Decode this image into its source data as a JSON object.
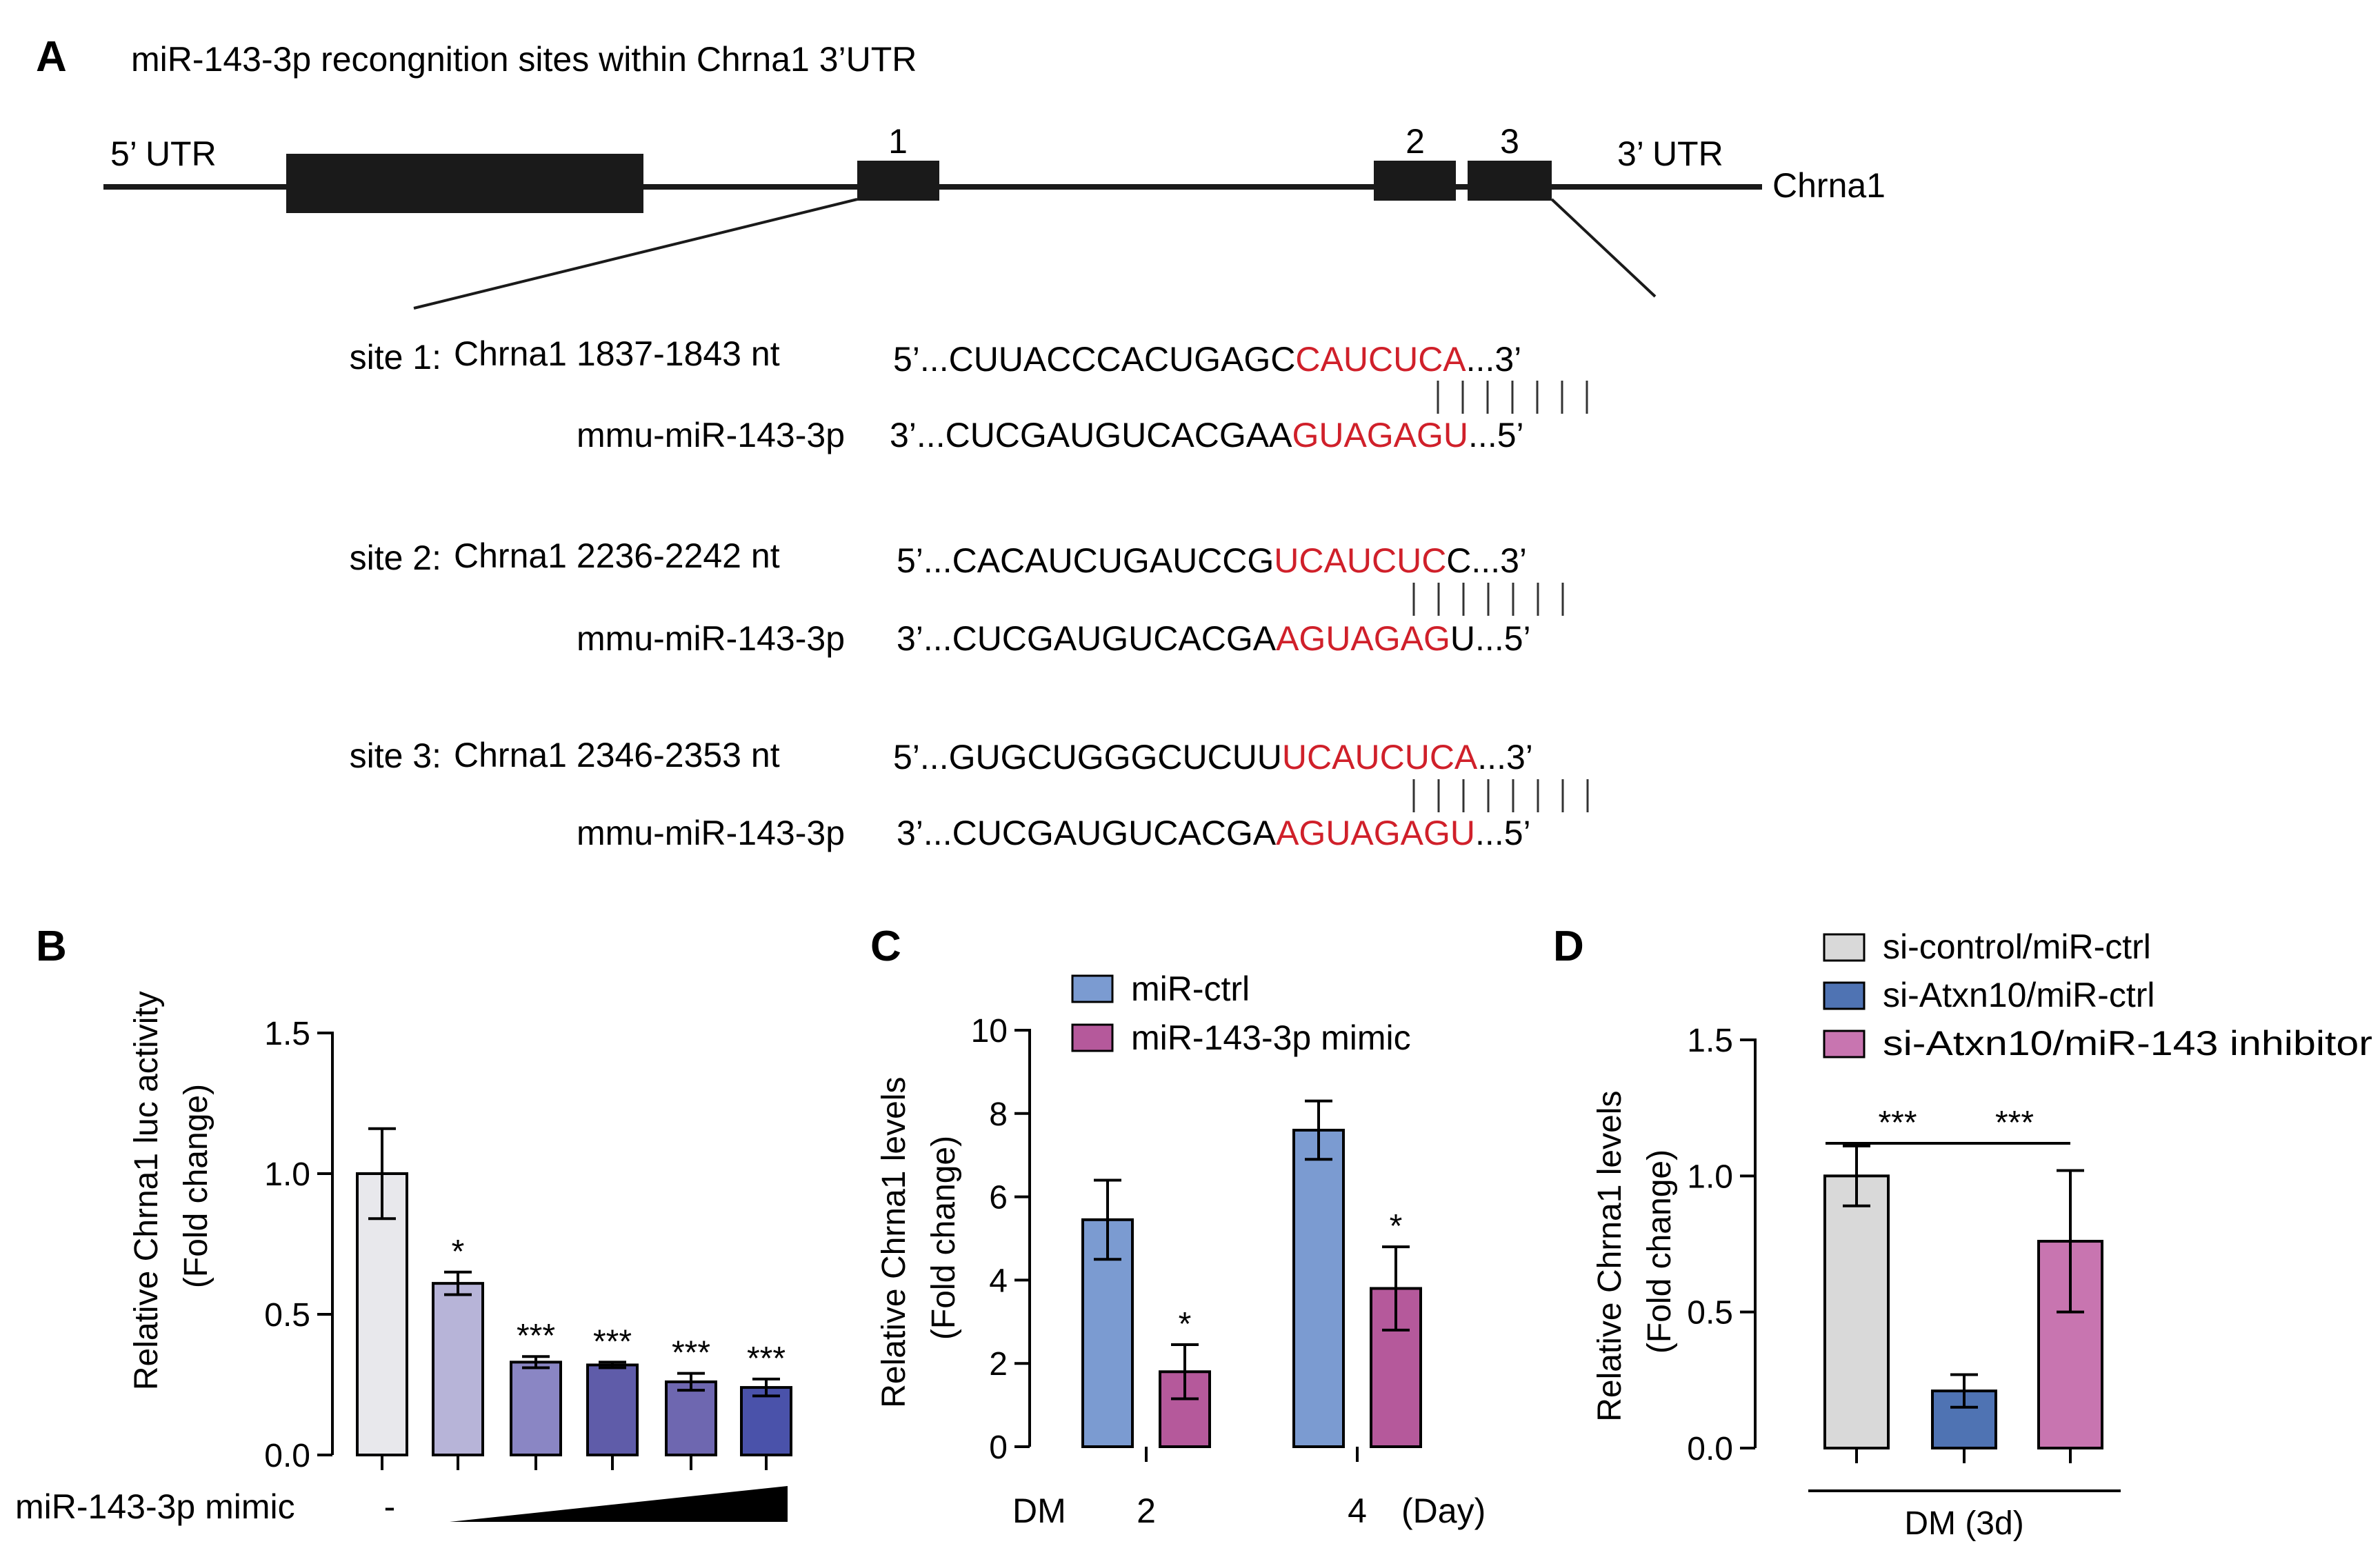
{
  "panel_a": {
    "letter": "A",
    "title": "miR-143-3p recongnition sites within Chrna1 3’UTR",
    "utr5_label": "5’ UTR",
    "utr3_label": "3’ UTR",
    "gene_label": "Chrna1",
    "site_numbers": [
      "1",
      "2",
      "3"
    ],
    "sites": [
      {
        "label": "site 1:",
        "target": "Chrna1 1837-1843 nt",
        "mirna": "mmu-miR-143-3p",
        "top_prefix": "5’...",
        "top_black": "CUUACCCACUGAGC",
        "top_red": "CAUCUCA",
        "top_tail": "",
        "top_suffix": "...3’",
        "bot_prefix": "3’...",
        "bot_black": "CUCGAUGUCACGAA",
        "bot_red": "GUAGAGU",
        "bot_tail": "",
        "bot_suffix": "...5’",
        "bars": 7
      },
      {
        "label": "site 2:",
        "target": "Chrna1 2236-2242 nt",
        "mirna": "mmu-miR-143-3p",
        "top_prefix": "5’...",
        "top_black": "CACAUCUGAUCCG",
        "top_red": "UCAUCUC",
        "top_tail": "C",
        "top_suffix": "...3’",
        "bot_prefix": "3’...",
        "bot_black": "CUCGAUGUCACGA",
        "bot_red": "AGUAGAG",
        "bot_tail": "U",
        "bot_suffix": "...5’",
        "bars": 7
      },
      {
        "label": "site 3:",
        "target": "Chrna1 2346-2353 nt",
        "mirna": "mmu-miR-143-3p",
        "top_prefix": "5’...",
        "top_black": "GUGCUGGGCUCUU",
        "top_red": "UCAUCUCA",
        "top_tail": "",
        "top_suffix": "...3’",
        "bot_prefix": "3’...",
        "bot_black": "CUCGAUGUCACGA",
        "bot_red": "AGUAGAGU",
        "bot_tail": "",
        "bot_suffix": "...5’",
        "bars": 8
      }
    ],
    "colors": {
      "seed": "#d0202a",
      "line": "#1a1a1a"
    }
  },
  "chart_data": [
    {
      "panel": "B",
      "type": "bar",
      "ylabel_lines": [
        "Relative Chrna1 luc activity",
        "(Fold change)"
      ],
      "ylim": [
        0,
        1.5
      ],
      "yticks": [
        "0.0",
        "0.5",
        "1.0",
        "1.5"
      ],
      "xlabel": "miR-143-3p mimic",
      "control_mark": "-",
      "values": [
        1.0,
        0.61,
        0.33,
        0.32,
        0.26,
        0.24
      ],
      "errors": [
        0.16,
        0.04,
        0.02,
        0.01,
        0.03,
        0.03
      ],
      "annotations": [
        "",
        "*",
        "***",
        "***",
        "***",
        "***"
      ],
      "colors": [
        "#e8e8ec",
        "#b7b4d8",
        "#8a86c4",
        "#5f5ca9",
        "#6e67b0",
        "#4a52aa"
      ],
      "grid": false
    },
    {
      "panel": "C",
      "type": "bar",
      "ylabel_lines": [
        "Relative Chrna1 levels",
        "(Fold change)"
      ],
      "ylim": [
        0,
        10
      ],
      "yticks": [
        "0",
        "2",
        "4",
        "6",
        "8",
        "10"
      ],
      "categories": [
        "2",
        "4"
      ],
      "x_prefix": "DM",
      "x_unit": "(Day)",
      "series": [
        {
          "name": "miR-ctrl",
          "color": "#7b9bd1",
          "values": [
            5.45,
            7.6
          ],
          "errors": [
            0.95,
            0.7
          ],
          "annotations": [
            "",
            ""
          ]
        },
        {
          "name": "miR-143-3p mimic",
          "color": "#b5599b",
          "values": [
            1.8,
            3.8
          ],
          "errors": [
            0.65,
            1.0
          ],
          "annotations": [
            "*",
            "*"
          ]
        }
      ],
      "legend": "top",
      "grid": false
    },
    {
      "panel": "D",
      "type": "bar",
      "ylabel_lines": [
        "Relative Chrna1 levels",
        "(Fold change)"
      ],
      "ylim": [
        0,
        1.5
      ],
      "yticks": [
        "0.0",
        "0.5",
        "1.0",
        "1.5"
      ],
      "categories": [
        "si-control/miR-ctrl",
        "si-Atxn10/miR-ctrl",
        "si-Atxn10/miR-143 inhibitor"
      ],
      "values": [
        1.0,
        0.21,
        0.76
      ],
      "errors": [
        0.11,
        0.06,
        0.26
      ],
      "colors": [
        "#d9d9d9",
        "#4f73b3",
        "#c875b0"
      ],
      "comparisons": [
        {
          "from": 0,
          "to": 1,
          "label": "***"
        },
        {
          "from": 1,
          "to": 2,
          "label": "***"
        }
      ],
      "group_label": "DM (3d)",
      "legend": "top",
      "grid": false
    }
  ]
}
